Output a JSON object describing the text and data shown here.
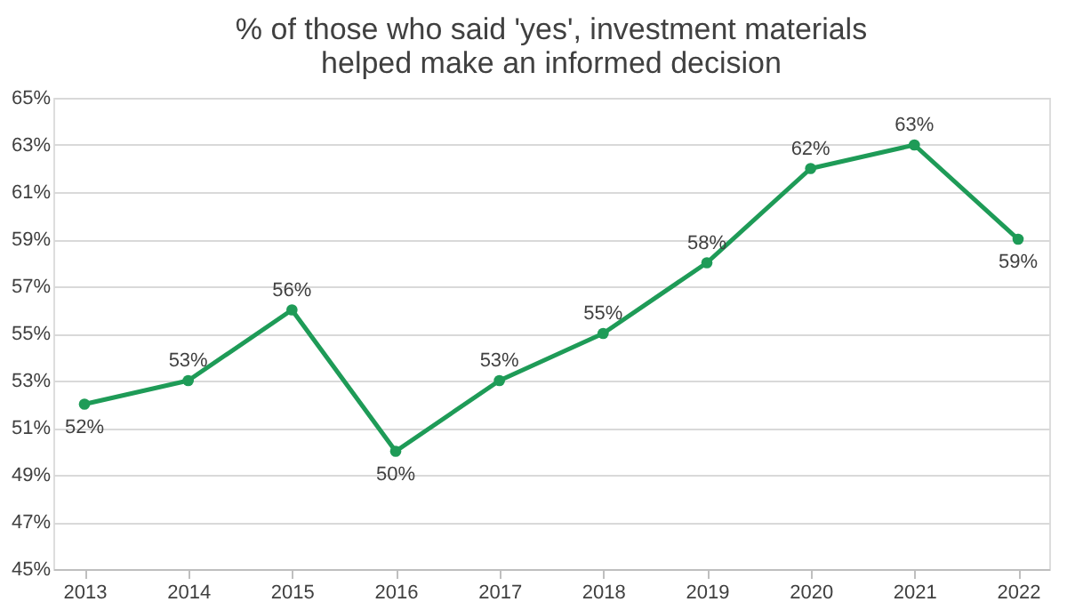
{
  "chart_data": {
    "type": "line",
    "title": "% of those who said 'yes', investment materials helped make an informed decision",
    "categories": [
      "2013",
      "2014",
      "2015",
      "2016",
      "2017",
      "2018",
      "2019",
      "2020",
      "2021",
      "2022"
    ],
    "series": [
      {
        "color": "#1e9b57",
        "values": [
          52,
          53,
          56,
          50,
          53,
          55,
          58,
          62,
          63,
          59
        ],
        "value_labels": [
          "52%",
          "53%",
          "56%",
          "50%",
          "53%",
          "55%",
          "58%",
          "62%",
          "63%",
          "59%"
        ]
      }
    ],
    "ylim": [
      45,
      65
    ],
    "yticks": [
      {
        "value": 45,
        "label": "45%"
      },
      {
        "value": 47,
        "label": "47%"
      },
      {
        "value": 49,
        "label": "49%"
      },
      {
        "value": 51,
        "label": "51%"
      },
      {
        "value": 53,
        "label": "53%"
      },
      {
        "value": 55,
        "label": "55%"
      },
      {
        "value": 57,
        "label": "57%"
      },
      {
        "value": 59,
        "label": "59%"
      },
      {
        "value": 61,
        "label": "61%"
      },
      {
        "value": 63,
        "label": "63%"
      },
      {
        "value": 65,
        "label": "65%"
      }
    ],
    "grid": "y",
    "marker": "circle",
    "line_style": "solid"
  }
}
